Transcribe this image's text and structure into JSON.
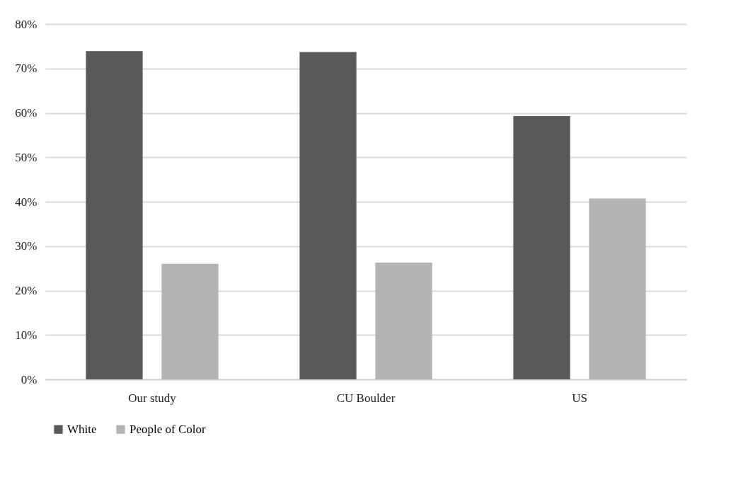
{
  "chart_data": {
    "type": "bar",
    "categories": [
      "Our study",
      "CU Boulder",
      "US"
    ],
    "series": [
      {
        "name": "White",
        "color": "#595959",
        "values": [
          73.9,
          73.7,
          59.3
        ]
      },
      {
        "name": "People of Color",
        "color": "#b3b3b3",
        "values": [
          26.0,
          26.3,
          40.7
        ]
      }
    ],
    "ylim": [
      0,
      80
    ],
    "yticks": [
      {
        "value": 0,
        "label": "0%"
      },
      {
        "value": 10,
        "label": "10%"
      },
      {
        "value": 20,
        "label": "20%"
      },
      {
        "value": 30,
        "label": "30%"
      },
      {
        "value": 40,
        "label": "40%"
      },
      {
        "value": 50,
        "label": "50%"
      },
      {
        "value": 60,
        "label": "60%"
      },
      {
        "value": 70,
        "label": "70%"
      },
      {
        "value": 80,
        "label": "80%"
      }
    ],
    "grid": "y",
    "legend": "bottom"
  }
}
